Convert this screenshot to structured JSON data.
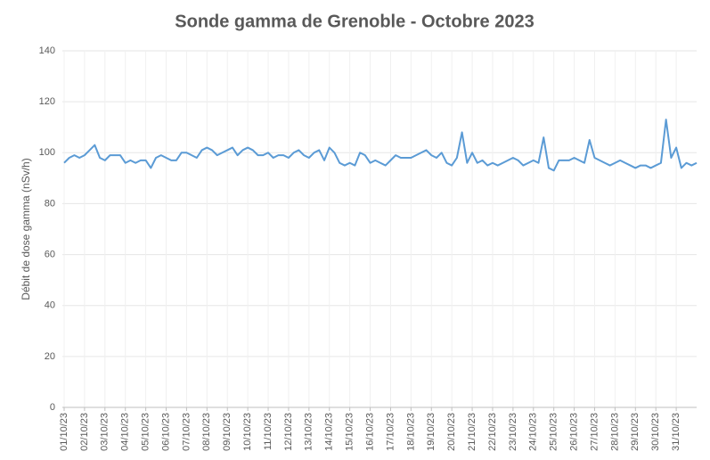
{
  "chart_data": {
    "type": "line",
    "title": "Sonde gamma de Grenoble - Octobre 2023",
    "y_label": "Débit de dose gamma (nSv/h)",
    "categories": [
      "01/10/23",
      null,
      null,
      null,
      "02/10/23",
      null,
      null,
      null,
      "03/10/23",
      null,
      null,
      null,
      "04/10/23",
      null,
      null,
      null,
      "05/10/23",
      null,
      null,
      null,
      "06/10/23",
      null,
      null,
      null,
      "07/10/23",
      null,
      null,
      null,
      "08/10/23",
      null,
      null,
      null,
      "09/10/23",
      null,
      null,
      null,
      "10/10/23",
      null,
      null,
      null,
      "11/10/23",
      null,
      null,
      null,
      "12/10/23",
      null,
      null,
      null,
      "13/10/23",
      null,
      null,
      null,
      "14/10/23",
      null,
      null,
      null,
      "15/10/23",
      null,
      null,
      null,
      "16/10/23",
      null,
      null,
      null,
      "17/10/23",
      null,
      null,
      null,
      "18/10/23",
      null,
      null,
      null,
      "19/10/23",
      null,
      null,
      null,
      "20/10/23",
      null,
      null,
      null,
      "21/10/23",
      null,
      null,
      null,
      "22/10/23",
      null,
      null,
      null,
      "23/10/23",
      null,
      null,
      null,
      "24/10/23",
      null,
      null,
      null,
      "25/10/23",
      null,
      null,
      null,
      "26/10/23",
      null,
      null,
      null,
      "27/10/23",
      null,
      null,
      null,
      "28/10/23",
      null,
      null,
      null,
      "29/10/23",
      null,
      null,
      null,
      "30/10/23",
      null,
      null,
      null,
      "31/10/23",
      null,
      null,
      null,
      null
    ],
    "series": [
      {
        "name": "Débit de dose gamma",
        "color": "#5b9bd5",
        "values": [
          96,
          98,
          99,
          98,
          99,
          101,
          103,
          98,
          97,
          99,
          99,
          99,
          96,
          97,
          96,
          97,
          97,
          94,
          98,
          99,
          98,
          97,
          97,
          100,
          100,
          99,
          98,
          101,
          102,
          101,
          99,
          100,
          101,
          102,
          99,
          101,
          102,
          101,
          99,
          99,
          100,
          98,
          99,
          99,
          98,
          100,
          101,
          99,
          98,
          100,
          101,
          97,
          102,
          100,
          96,
          95,
          96,
          95,
          100,
          99,
          96,
          97,
          96,
          95,
          97,
          99,
          98,
          98,
          98,
          99,
          100,
          101,
          99,
          98,
          100,
          96,
          95,
          98,
          108,
          96,
          100,
          96,
          97,
          95,
          96,
          95,
          96,
          97,
          98,
          97,
          95,
          96,
          97,
          96,
          106,
          94,
          93,
          97,
          97,
          97,
          98,
          97,
          96,
          105,
          98,
          97,
          96,
          95,
          96,
          97,
          96,
          95,
          94,
          95,
          95,
          94,
          95,
          96,
          113,
          98,
          102,
          94,
          96,
          95,
          96
        ]
      }
    ],
    "ylim": [
      0,
      140
    ],
    "yticks": [
      0,
      20,
      40,
      60,
      80,
      100,
      120,
      140
    ],
    "grid": true
  }
}
